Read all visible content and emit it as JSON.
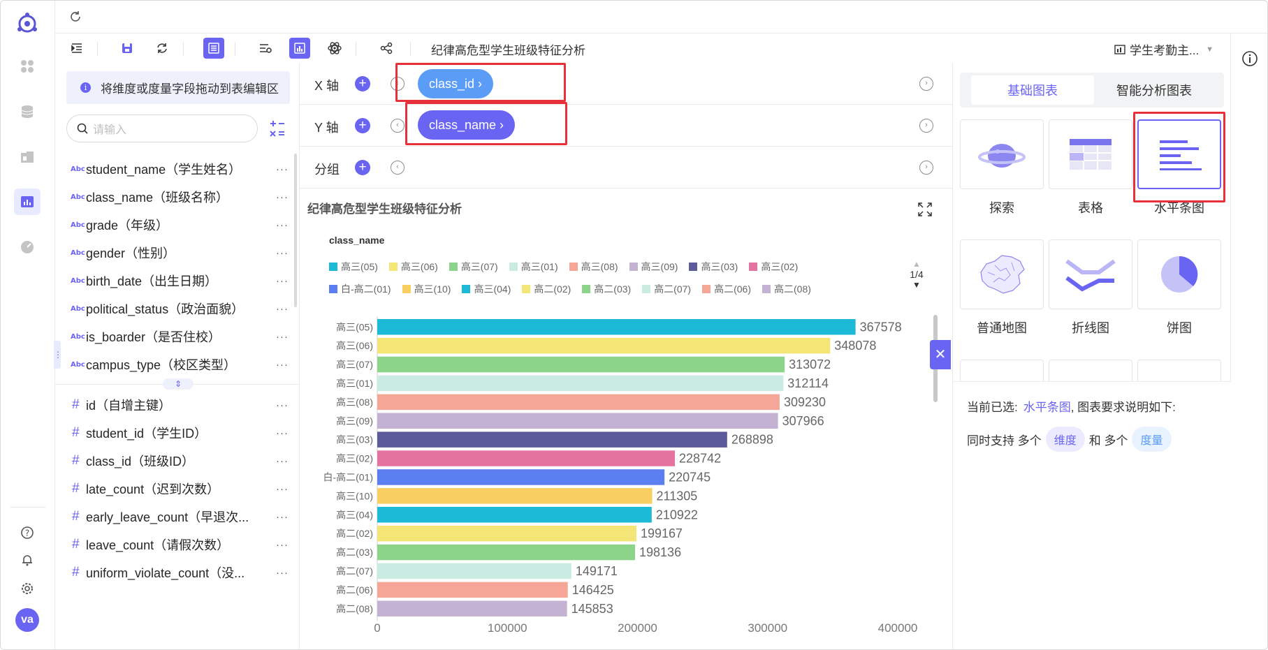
{
  "app": {
    "refresh_label": "↻"
  },
  "toolbar": {
    "chart_title": "纪律高危型学生班级特征分析",
    "dataset_name": "学生考勤主..."
  },
  "fields": {
    "hint": "将维度或度量字段拖动到表编辑区",
    "search_placeholder": "请输入",
    "dimensions": [
      {
        "type": "Abc",
        "name": "student_name（学生姓名）"
      },
      {
        "type": "Abc",
        "name": "class_name（班级名称）"
      },
      {
        "type": "Abc",
        "name": "grade（年级）"
      },
      {
        "type": "Abc",
        "name": "gender（性别）"
      },
      {
        "type": "Abc",
        "name": "birth_date（出生日期）"
      },
      {
        "type": "Abc",
        "name": "political_status（政治面貌）"
      },
      {
        "type": "Abc",
        "name": "is_boarder（是否住校）"
      },
      {
        "type": "Abc",
        "name": "campus_type（校区类型）"
      }
    ],
    "measures": [
      {
        "type": "#",
        "name": "id（自增主键）"
      },
      {
        "type": "#",
        "name": "student_id（学生ID）"
      },
      {
        "type": "#",
        "name": "class_id（班级ID）"
      },
      {
        "type": "#",
        "name": "late_count（迟到次数）"
      },
      {
        "type": "#",
        "name": "early_leave_count（早退次..."
      },
      {
        "type": "#",
        "name": "leave_count（请假次数）"
      },
      {
        "type": "#",
        "name": "uniform_violate_count（没..."
      }
    ],
    "more_glyph": "···"
  },
  "config": {
    "x_label": "X 轴",
    "y_label": "Y 轴",
    "group_label": "分组",
    "x_field": "class_id ›",
    "y_field": "class_name ›",
    "x_pill_color": "#5b9cf7",
    "y_pill_color": "#6a64f3"
  },
  "chart_panel": {
    "tab_basic": "基础图表",
    "tab_smart": "智能分析图表",
    "types": [
      "探索",
      "表格",
      "水平条图",
      "普通地图",
      "折线图",
      "饼图"
    ],
    "selected_prefix": "当前已选:",
    "selected_name": "水平条图",
    "selected_suffix": ", 图表要求说明如下:",
    "support_prefix": "同时支持 多个",
    "support_dim": "维度",
    "support_and": "和 多个",
    "support_measure": "度量"
  },
  "chart_data": {
    "type": "bar",
    "orientation": "horizontal",
    "title": "纪律高危型学生班级特征分析",
    "legend_title": "class_name",
    "legend_page": "1/4",
    "categories": [
      "高三(05)",
      "高三(06)",
      "高三(07)",
      "高三(01)",
      "高三(08)",
      "高三(09)",
      "高三(03)",
      "高三(02)",
      "白-高二(01)",
      "高三(10)",
      "高三(04)",
      "高二(02)",
      "高二(03)",
      "高二(07)",
      "高二(06)",
      "高二(08)"
    ],
    "values": [
      367578,
      348078,
      313072,
      312114,
      309230,
      307966,
      268898,
      228742,
      220745,
      211305,
      210922,
      199167,
      198136,
      149171,
      146425,
      145853
    ],
    "colors": [
      "#1cbad6",
      "#f4e577",
      "#8cd48a",
      "#c9ebe2",
      "#f6a696",
      "#c4b2d2",
      "#5d5a9c",
      "#e4739f",
      "#5b7ff0",
      "#f9cf62",
      "#1cbad6",
      "#f4e577",
      "#8cd48a",
      "#c9ebe2",
      "#f6a696",
      "#c4b2d2"
    ],
    "xlim": [
      0,
      400000
    ],
    "xticks": [
      "0",
      "100000",
      "200000",
      "300000",
      "400000"
    ]
  }
}
